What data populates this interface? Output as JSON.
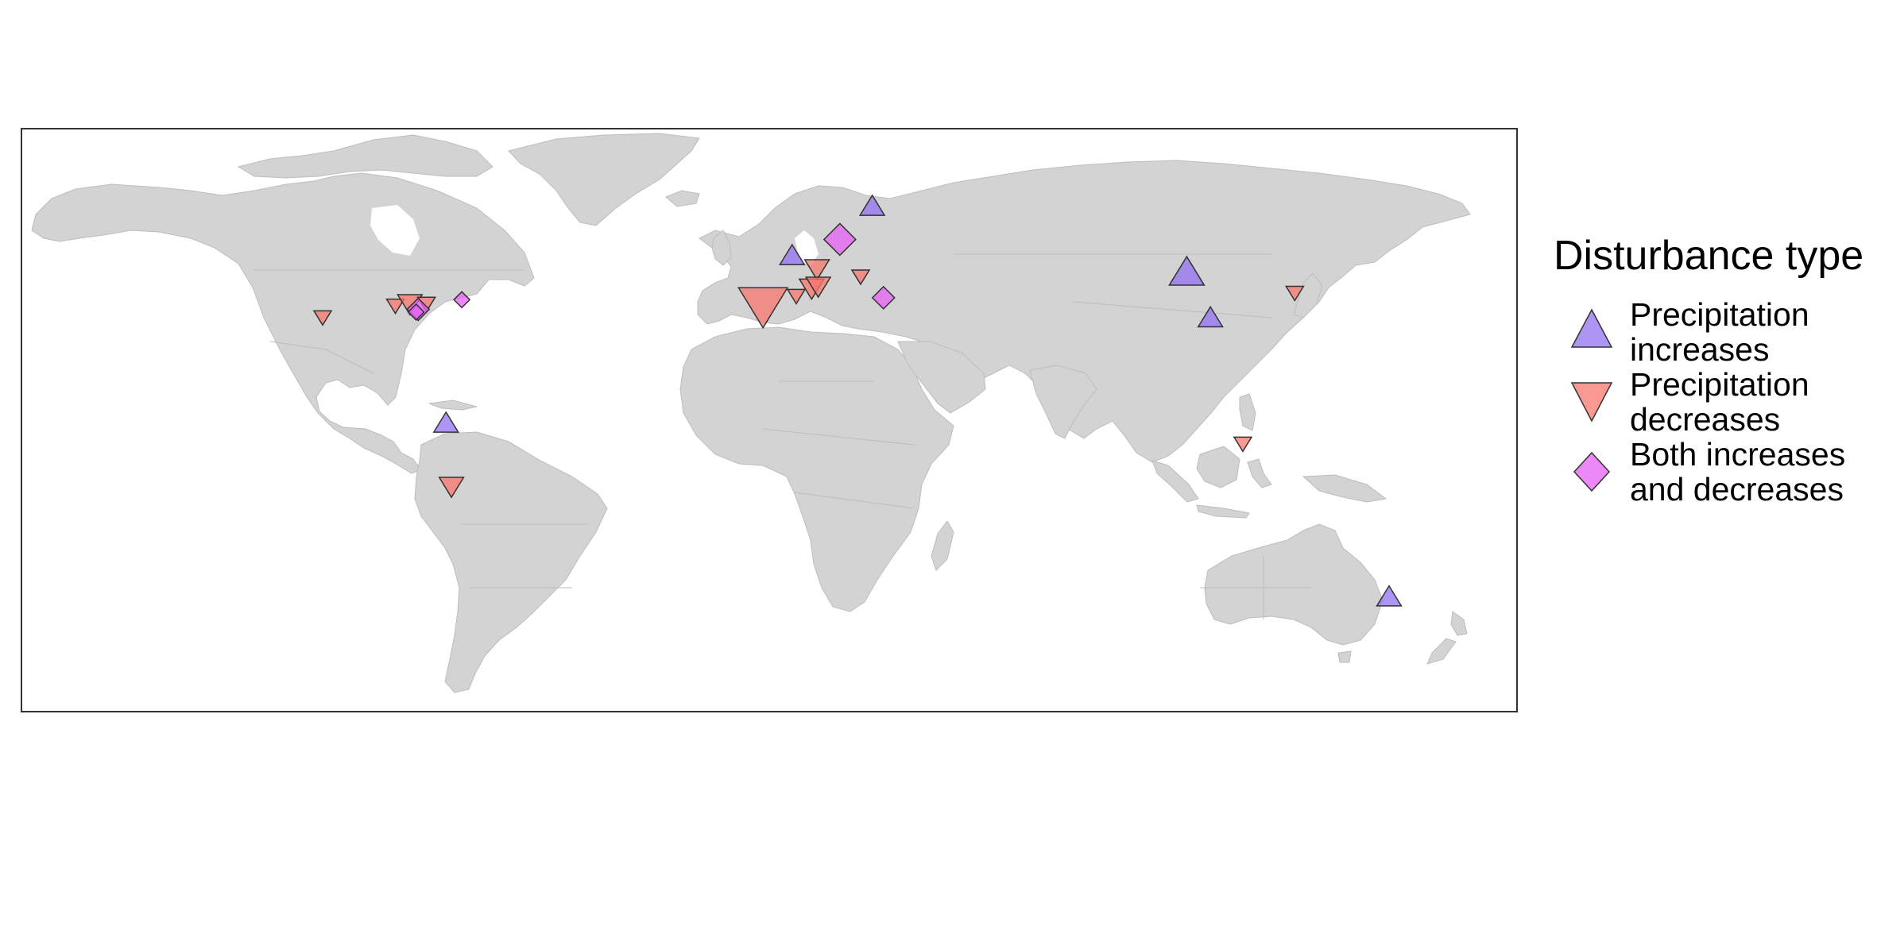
{
  "legend": {
    "title": "Disturbance type",
    "items": [
      {
        "label": "Precipitation\nincreases",
        "shape": "triangle-up",
        "color": "#9370f0"
      },
      {
        "label": "Precipitation\ndecreases",
        "shape": "triangle-down",
        "color": "#f8766d"
      },
      {
        "label": "Both increases\nand decreases",
        "shape": "diamond",
        "color": "#e760f5"
      }
    ]
  },
  "markers": [
    {
      "lon": 24.8,
      "lat": 65.0,
      "type": "triangle-up",
      "size": 1
    },
    {
      "lon": 5.5,
      "lat": 52.3,
      "type": "triangle-up",
      "size": 1
    },
    {
      "lon": 100.5,
      "lat": 48.0,
      "type": "triangle-up",
      "size": 2
    },
    {
      "lon": 106.2,
      "lat": 36.3,
      "type": "triangle-up",
      "size": 1
    },
    {
      "lon": -77.8,
      "lat": 9.2,
      "type": "triangle-up",
      "size": 1
    },
    {
      "lon": 149.2,
      "lat": -35.5,
      "type": "triangle-up",
      "size": 1
    },
    {
      "lon": 11.5,
      "lat": 49.0,
      "type": "triangle-down",
      "size": 1
    },
    {
      "lon": 22.0,
      "lat": 47.0,
      "type": "triangle-down",
      "size": 0
    },
    {
      "lon": 10.2,
      "lat": 44.0,
      "type": "triangle-down",
      "size": 1
    },
    {
      "lon": 11.8,
      "lat": 44.5,
      "type": "triangle-down",
      "size": 1
    },
    {
      "lon": 6.5,
      "lat": 42.0,
      "type": "triangle-down",
      "size": 0
    },
    {
      "lon": -1.5,
      "lat": 39.5,
      "type": "triangle-down",
      "size": 3
    },
    {
      "lon": -107.5,
      "lat": 36.5,
      "type": "triangle-down",
      "size": 0
    },
    {
      "lon": -90.0,
      "lat": 39.5,
      "type": "triangle-down",
      "size": 0
    },
    {
      "lon": -86.5,
      "lat": 40.0,
      "type": "triangle-down",
      "size": 1
    },
    {
      "lon": -82.5,
      "lat": 40.0,
      "type": "triangle-down",
      "size": 0
    },
    {
      "lon": 126.5,
      "lat": 42.8,
      "type": "triangle-down",
      "size": 0
    },
    {
      "lon": 114.0,
      "lat": 4.0,
      "type": "triangle-down",
      "size": 0
    },
    {
      "lon": -76.5,
      "lat": -7.0,
      "type": "triangle-down",
      "size": 1
    },
    {
      "lon": 17.0,
      "lat": 56.5,
      "type": "diamond",
      "size": 2
    },
    {
      "lon": 27.5,
      "lat": 41.5,
      "type": "diamond",
      "size": 1
    },
    {
      "lon": -84.5,
      "lat": 38.5,
      "type": "diamond",
      "size": 1
    },
    {
      "lon": -85.0,
      "lat": 37.8,
      "type": "diamond",
      "size": 0
    },
    {
      "lon": -74.0,
      "lat": 41.0,
      "type": "diamond",
      "size": 0
    }
  ]
}
